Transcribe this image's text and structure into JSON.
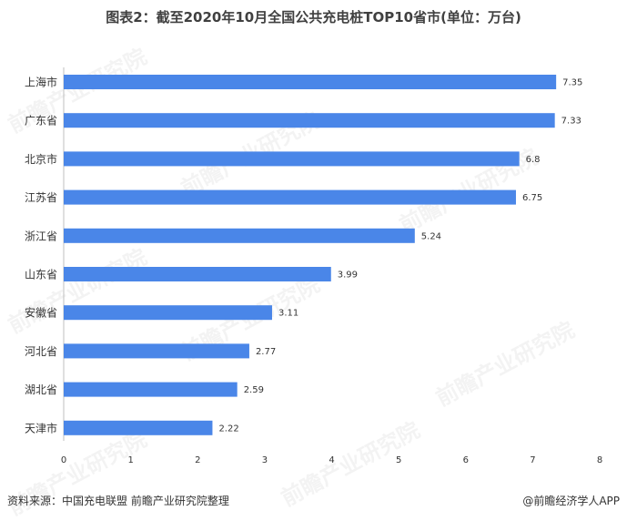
{
  "title": "图表2：截至2020年10月全国公共充电桩TOP10省市(单位：万台)",
  "footer": {
    "source": "资料来源：中国充电联盟 前瞻产业研究院整理",
    "credit": "@前瞻经济学人APP"
  },
  "watermark": "前瞻产业研究院",
  "colors": {
    "bar": "#4a86e8",
    "axis": "#bfbfbf",
    "text": "#333333"
  },
  "chart_data": {
    "type": "bar",
    "orientation": "horizontal",
    "categories": [
      "上海市",
      "广东省",
      "北京市",
      "江苏省",
      "浙江省",
      "山东省",
      "安徽省",
      "河北省",
      "湖北省",
      "天津市"
    ],
    "values": [
      7.35,
      7.33,
      6.8,
      6.75,
      5.24,
      3.99,
      3.11,
      2.77,
      2.59,
      2.22
    ],
    "xlim": [
      0,
      8
    ],
    "xticks": [
      0,
      1,
      2,
      3,
      4,
      5,
      6,
      7,
      8
    ],
    "grid": false,
    "data_labels": true
  }
}
